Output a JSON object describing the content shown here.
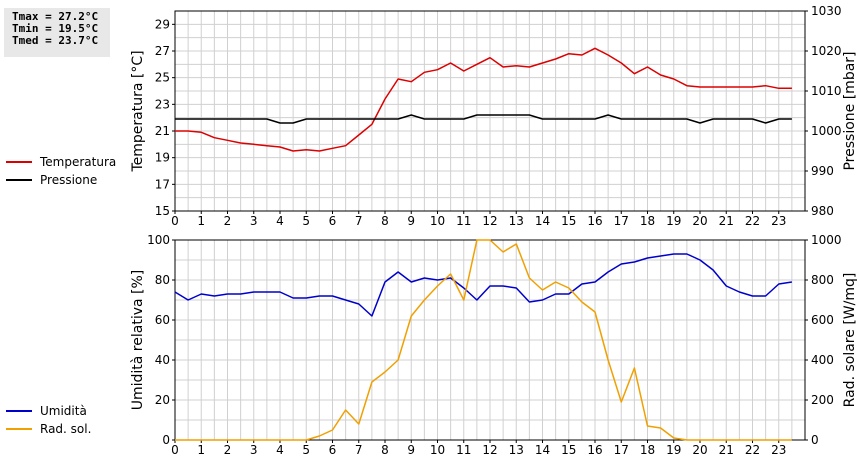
{
  "stats": {
    "tmax": "Tmax = 27.2°C",
    "tmin": "Tmin = 19.5°C",
    "tmed": "Tmed = 23.7°C"
  },
  "colors": {
    "temperature": "#dd0000",
    "pressure": "#000000",
    "humidity": "#0000cc",
    "radiation": "#f0a000",
    "grid": "#d0d0d0"
  },
  "chart_data": [
    {
      "type": "line",
      "legend": "left",
      "grid": true,
      "ylabel": "Temperatura [°C]",
      "y2label": "Pressione [mbar]",
      "xlim": [
        0,
        24
      ],
      "ylim": [
        15,
        30
      ],
      "y2lim": [
        980,
        1030
      ],
      "x_ticks": [
        "0",
        "1",
        "2",
        "3",
        "4",
        "5",
        "6",
        "7",
        "8",
        "9",
        "10",
        "11",
        "12",
        "13",
        "14",
        "15",
        "16",
        "17",
        "18",
        "19",
        "20",
        "21",
        "22",
        "23"
      ],
      "y_ticks": [
        "15",
        "17",
        "19",
        "21",
        "23",
        "25",
        "27",
        "29"
      ],
      "y2_ticks": [
        "980",
        "990",
        "1000",
        "1010",
        "1020",
        "1030"
      ],
      "series": [
        {
          "name": "Temperatura",
          "axis": "left",
          "x": [
            0,
            0.5,
            1,
            1.5,
            2,
            2.5,
            3,
            3.5,
            4,
            4.5,
            5,
            5.5,
            6,
            6.5,
            7,
            7.5,
            8,
            8.5,
            9,
            9.5,
            10,
            10.5,
            11,
            11.5,
            12,
            12.5,
            13,
            13.5,
            14,
            14.5,
            15,
            15.5,
            16,
            16.5,
            17,
            17.5,
            18,
            18.5,
            19,
            19.5,
            20,
            20.5,
            21,
            21.5,
            22,
            22.5,
            23,
            23.5
          ],
          "y": [
            21.0,
            21.0,
            20.9,
            20.5,
            20.3,
            20.1,
            20.0,
            19.9,
            19.8,
            19.5,
            19.6,
            19.5,
            19.7,
            19.9,
            20.7,
            21.5,
            23.4,
            24.9,
            24.7,
            25.4,
            25.6,
            26.1,
            25.5,
            26.0,
            26.5,
            25.8,
            25.9,
            25.8,
            26.1,
            26.4,
            26.8,
            26.7,
            27.2,
            26.7,
            26.1,
            25.3,
            25.8,
            25.2,
            24.9,
            24.4,
            24.3,
            24.3,
            24.3,
            24.3,
            24.3,
            24.4,
            24.2,
            24.2
          ]
        },
        {
          "name": "Pressione",
          "axis": "right",
          "x": [
            0,
            0.5,
            1,
            1.5,
            2,
            2.5,
            3,
            3.5,
            4,
            4.5,
            5,
            5.5,
            6,
            6.5,
            7,
            7.5,
            8,
            8.5,
            9,
            9.5,
            10,
            10.5,
            11,
            11.5,
            12,
            12.5,
            13,
            13.5,
            14,
            14.5,
            15,
            15.5,
            16,
            16.5,
            17,
            17.5,
            18,
            18.5,
            19,
            19.5,
            20,
            20.5,
            21,
            21.5,
            22,
            22.5,
            23,
            23.5
          ],
          "y": [
            1003,
            1003,
            1003,
            1003,
            1003,
            1003,
            1003,
            1003,
            1002,
            1002,
            1003,
            1003,
            1003,
            1003,
            1003,
            1003,
            1003,
            1003,
            1004,
            1003,
            1003,
            1003,
            1003,
            1004,
            1004,
            1004,
            1004,
            1004,
            1003,
            1003,
            1003,
            1003,
            1003,
            1004,
            1003,
            1003,
            1003,
            1003,
            1003,
            1003,
            1002,
            1003,
            1003,
            1003,
            1003,
            1002,
            1003,
            1003
          ]
        }
      ]
    },
    {
      "type": "line",
      "legend": "left",
      "grid": true,
      "ylabel": "Umidità relativa [%]",
      "y2label": "Rad. solare [W/mq]",
      "xlim": [
        0,
        24
      ],
      "ylim": [
        0,
        100
      ],
      "y2lim": [
        0,
        1000
      ],
      "x_ticks": [
        "0",
        "1",
        "2",
        "3",
        "4",
        "5",
        "6",
        "7",
        "8",
        "9",
        "10",
        "11",
        "12",
        "13",
        "14",
        "15",
        "16",
        "17",
        "18",
        "19",
        "20",
        "21",
        "22",
        "23"
      ],
      "y_ticks": [
        "0",
        "20",
        "40",
        "60",
        "80",
        "100"
      ],
      "y2_ticks": [
        "0",
        "200",
        "400",
        "600",
        "800",
        "1000"
      ],
      "series": [
        {
          "name": "Umidità",
          "axis": "left",
          "x": [
            0,
            0.5,
            1,
            1.5,
            2,
            2.5,
            3,
            3.5,
            4,
            4.5,
            5,
            5.5,
            6,
            6.5,
            7,
            7.5,
            8,
            8.5,
            9,
            9.5,
            10,
            10.5,
            11,
            11.5,
            12,
            12.5,
            13,
            13.5,
            14,
            14.5,
            15,
            15.5,
            16,
            16.5,
            17,
            17.5,
            18,
            18.5,
            19,
            19.5,
            20,
            20.5,
            21,
            21.5,
            22,
            22.5,
            23,
            23.5
          ],
          "y": [
            74,
            70,
            73,
            72,
            73,
            73,
            74,
            74,
            74,
            71,
            71,
            72,
            72,
            70,
            68,
            62,
            79,
            84,
            79,
            81,
            80,
            81,
            76,
            70,
            77,
            77,
            76,
            69,
            70,
            73,
            73,
            78,
            79,
            84,
            88,
            89,
            91,
            92,
            93,
            93,
            90,
            85,
            77,
            74,
            72,
            72,
            78,
            79
          ]
        },
        {
          "name": "Rad. sol.",
          "axis": "right",
          "x": [
            0,
            0.5,
            1,
            1.5,
            2,
            2.5,
            3,
            3.5,
            4,
            4.5,
            5,
            5.5,
            6,
            6.5,
            7,
            7.5,
            8,
            8.5,
            9,
            9.5,
            10,
            10.5,
            11,
            11.5,
            12,
            12.5,
            13,
            13.5,
            14,
            14.5,
            15,
            15.5,
            16,
            16.5,
            17,
            17.5,
            18,
            18.5,
            19,
            19.5,
            20,
            20.5,
            21,
            21.5,
            22,
            22.5,
            23,
            23.5
          ],
          "y": [
            0,
            0,
            0,
            0,
            0,
            0,
            0,
            0,
            0,
            0,
            0,
            20,
            50,
            150,
            80,
            290,
            340,
            400,
            620,
            700,
            770,
            830,
            700,
            1010,
            1000,
            940,
            980,
            810,
            750,
            790,
            760,
            690,
            640,
            400,
            190,
            360,
            70,
            60,
            10,
            0,
            0,
            0,
            0,
            0,
            0,
            0,
            0,
            0
          ]
        }
      ]
    }
  ]
}
